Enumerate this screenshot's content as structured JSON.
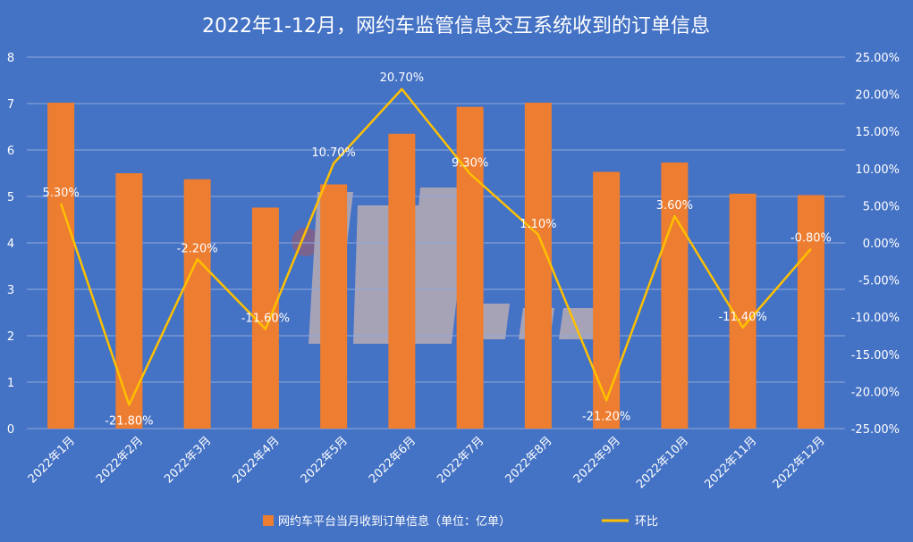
{
  "chart_data": {
    "type": "bar",
    "title": "2022年1-12月，网约车监管信息交互系统收到的订单信息",
    "categories": [
      "2022年1月",
      "2022年2月",
      "2022年3月",
      "2022年4月",
      "2022年5月",
      "2022年6月",
      "2022年7月",
      "2022年8月",
      "2022年9月",
      "2022年10月",
      "2022年11月",
      "2022年12月"
    ],
    "series": [
      {
        "name": "网约车平台当月收到订单信息（单位：亿单）",
        "type": "bar",
        "axis": "left",
        "color": "#ED7D31",
        "values": [
          7.02,
          5.5,
          5.37,
          4.76,
          5.26,
          6.35,
          6.93,
          7.02,
          5.53,
          5.73,
          5.06,
          5.03
        ]
      },
      {
        "name": "环比",
        "type": "line",
        "axis": "right",
        "color": "#FFC000",
        "values": [
          5.3,
          -21.8,
          -2.2,
          -11.6,
          10.7,
          20.7,
          9.3,
          1.1,
          -21.2,
          3.6,
          -11.4,
          -0.8
        ],
        "labels": [
          "5.30%",
          "-21.80%",
          "-2.20%",
          "-11.60%",
          "10.70%",
          "20.70%",
          "9.30%",
          "1.10%",
          "-21.20%",
          "3.60%",
          "-11.40%",
          "-0.80%"
        ]
      }
    ],
    "y_left": {
      "min": 0,
      "max": 8,
      "step": 1,
      "ticks": [
        "0",
        "1",
        "2",
        "3",
        "4",
        "5",
        "6",
        "7",
        "8"
      ]
    },
    "y_right": {
      "min": -25,
      "max": 25,
      "step": 5,
      "ticks": [
        "-25.00%",
        "-20.00%",
        "-15.00%",
        "-10.00%",
        "-5.00%",
        "0.00%",
        "5.00%",
        "10.00%",
        "15.00%",
        "20.00%",
        "25.00%"
      ]
    },
    "grid": true,
    "legend_position": "bottom",
    "text_color": "#FFFFFF",
    "grid_color": "#8FAADC",
    "watermark_color": "#F8CBAD"
  }
}
